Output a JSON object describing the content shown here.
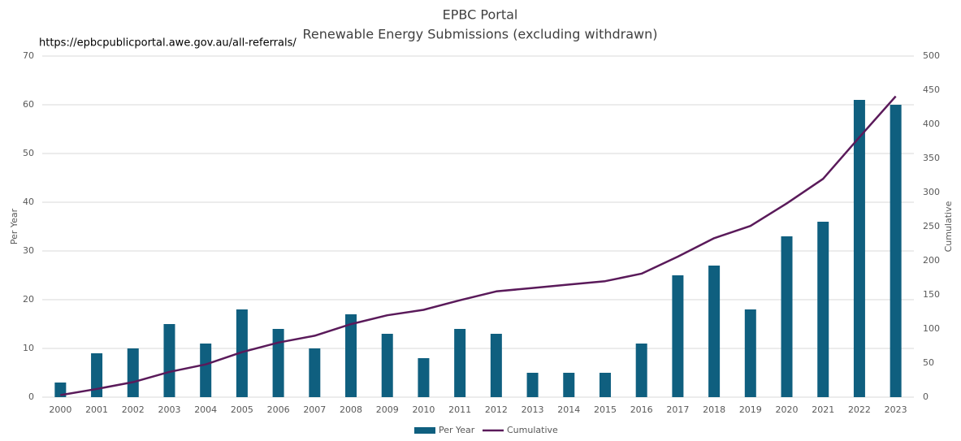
{
  "chart_data": {
    "type": "bar",
    "title": "EPBC Portal",
    "subtitle": "Renewable Energy Submissions (excluding withdrawn)",
    "annotation": "https://epbcpublicportal.awe.gov.au/all-referrals/",
    "y_label": "Per Year",
    "y2_label": "Cumulative",
    "categories": [
      "2000",
      "2001",
      "2002",
      "2003",
      "2004",
      "2005",
      "2006",
      "2007",
      "2008",
      "2009",
      "2010",
      "2011",
      "2012",
      "2013",
      "2014",
      "2015",
      "2016",
      "2017",
      "2018",
      "2019",
      "2020",
      "2021",
      "2022",
      "2023"
    ],
    "series": [
      {
        "name": "Per Year",
        "type": "bar",
        "color": "#0f5f7f",
        "values": [
          3,
          9,
          10,
          15,
          11,
          18,
          14,
          10,
          17,
          13,
          8,
          14,
          13,
          5,
          5,
          5,
          11,
          25,
          27,
          18,
          33,
          36,
          61,
          60
        ]
      },
      {
        "name": "Cumulative",
        "type": "line",
        "axis": "y2",
        "color": "#5a1a5a",
        "values": [
          3,
          12,
          22,
          37,
          48,
          66,
          80,
          90,
          107,
          120,
          128,
          142,
          155,
          160,
          165,
          170,
          181,
          206,
          233,
          251,
          284,
          320,
          381,
          441
        ]
      }
    ],
    "ylim": [
      0,
      70
    ],
    "yticks": [
      0,
      10,
      20,
      30,
      40,
      50,
      60,
      70
    ],
    "y2lim": [
      0,
      500
    ],
    "y2ticks": [
      0,
      50,
      100,
      150,
      200,
      250,
      300,
      350,
      400,
      450,
      500
    ],
    "grid": true,
    "legend": "bottom"
  }
}
